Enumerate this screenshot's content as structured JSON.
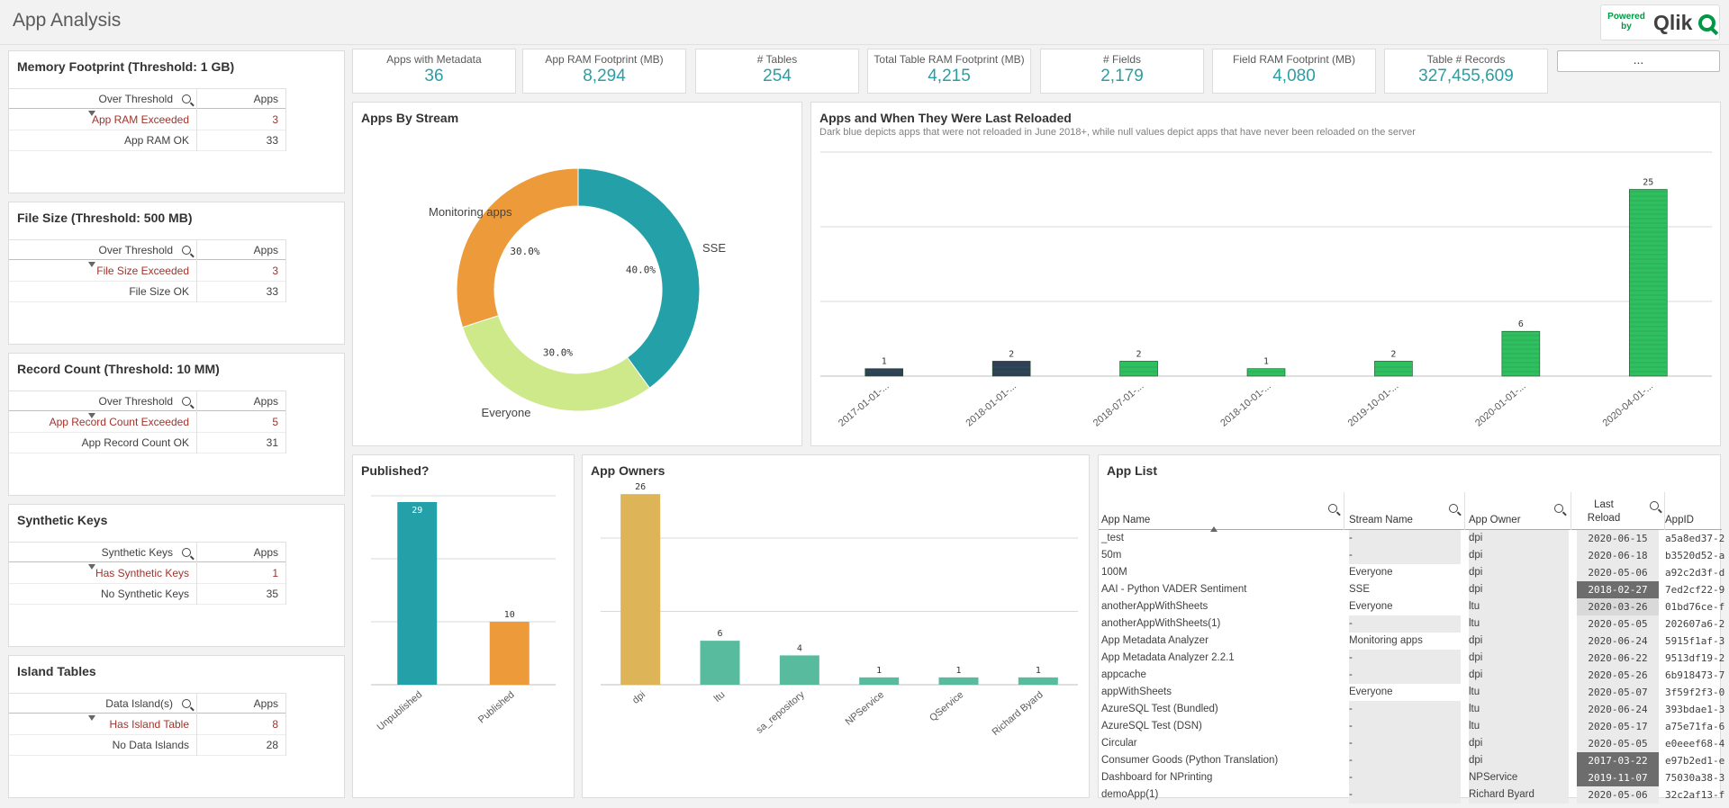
{
  "app": {
    "title": "App Analysis",
    "logo_powered": "Powered by",
    "logo_brand": "Qlik"
  },
  "kpis": [
    {
      "label": "Apps with Metadata",
      "value": "36"
    },
    {
      "label": "App RAM Footprint (MB)",
      "value": "8,294"
    },
    {
      "label": "# Tables",
      "value": "254"
    },
    {
      "label": "Total Table RAM Footprint (MB)",
      "value": "4,215"
    },
    {
      "label": "# Fields",
      "value": "2,179"
    },
    {
      "label": "Field RAM Footprint (MB)",
      "value": "4,080"
    },
    {
      "label": "Table # Records",
      "value": "327,455,609"
    }
  ],
  "more_button": "...",
  "threshold_tables": [
    {
      "title": "Memory Footprint (Threshold: 1 GB)",
      "col1": "Over Threshold",
      "col2": "Apps",
      "rows": [
        {
          "label": "App RAM Exceeded",
          "value": "3",
          "flag": true
        },
        {
          "label": "App RAM OK",
          "value": "33",
          "flag": false
        }
      ]
    },
    {
      "title": "File Size (Threshold: 500 MB)",
      "col1": "Over Threshold",
      "col2": "Apps",
      "rows": [
        {
          "label": "File Size Exceeded",
          "value": "3",
          "flag": true
        },
        {
          "label": "File Size OK",
          "value": "33",
          "flag": false
        }
      ]
    },
    {
      "title": "Record Count (Threshold: 10 MM)",
      "col1": "Over Threshold",
      "col2": "Apps",
      "rows": [
        {
          "label": "App Record Count Exceeded",
          "value": "5",
          "flag": true
        },
        {
          "label": "App Record Count OK",
          "value": "31",
          "flag": false
        }
      ]
    },
    {
      "title": "Synthetic Keys",
      "col1": "Synthetic Keys",
      "col2": "Apps",
      "rows": [
        {
          "label": "Has Synthetic Keys",
          "value": "1",
          "flag": true
        },
        {
          "label": "No Synthetic Keys",
          "value": "35",
          "flag": false
        }
      ]
    },
    {
      "title": "Island Tables",
      "col1": "Data Island(s)",
      "col2": "Apps",
      "rows": [
        {
          "label": "Has Island Table",
          "value": "8",
          "flag": true
        },
        {
          "label": "No Data Islands",
          "value": "28",
          "flag": false
        }
      ]
    }
  ],
  "panels": {
    "stream_title": "Apps By Stream",
    "reload_title": "Apps and When They Were Last Reloaded",
    "reload_subtitle": "Dark blue depicts apps that were not reloaded in June 2018+, while null values depict apps that have never been reloaded on the server",
    "published_title": "Published?",
    "owners_title": "App Owners",
    "applist_title": "App List"
  },
  "chart_data": [
    {
      "type": "pie",
      "title": "Apps By Stream",
      "slices": [
        {
          "label": "SSE",
          "value": 40.0,
          "display": "40.0%",
          "color": "#23a0a8"
        },
        {
          "label": "Everyone",
          "value": 30.0,
          "display": "30.0%",
          "color": "#cde98a"
        },
        {
          "label": "Monitoring apps",
          "value": 30.0,
          "display": "30.0%",
          "color": "#ec9a3a"
        }
      ]
    },
    {
      "type": "bar",
      "title": "Apps and When They Were Last Reloaded",
      "categories": [
        "2017-01-01-...",
        "2018-01-01-...",
        "2018-07-01-...",
        "2018-10-01-...",
        "2019-10-01-...",
        "2020-01-01-...",
        "2020-04-01-..."
      ],
      "values": [
        1,
        2,
        2,
        1,
        2,
        6,
        25
      ],
      "colors": [
        "#2f3f55",
        "#2f3f55",
        "#2fbf5f",
        "#2fbf5f",
        "#2fbf5f",
        "#2fbf5f",
        "#2fbf5f"
      ],
      "ylim": [
        0,
        30
      ]
    },
    {
      "type": "bar",
      "title": "Published?",
      "categories": [
        "Unpublished",
        "Published"
      ],
      "values": [
        29,
        10
      ],
      "colors": [
        "#23a0a8",
        "#ec9a3a"
      ],
      "ylim": [
        0,
        30
      ]
    },
    {
      "type": "bar",
      "title": "App Owners",
      "categories": [
        "dpi",
        "ltu",
        "sa_repository",
        "NPService",
        "QService",
        "Richard Byard"
      ],
      "values": [
        26,
        6,
        4,
        1,
        1,
        1
      ],
      "colors": [
        "#ddb457",
        "#58bb9e",
        "#58bb9e",
        "#58bb9e",
        "#58bb9e",
        "#58bb9e"
      ],
      "ylim": [
        0,
        27
      ]
    }
  ],
  "app_list": {
    "columns": [
      "App Name",
      "Stream Name",
      "App Owner",
      "Last Reload",
      "AppID"
    ],
    "rows": [
      {
        "name": "_test",
        "stream": "-",
        "owner": "dpi",
        "reload": "2020-06-15",
        "id": "a5a8ed37-2",
        "hl": ""
      },
      {
        "name": "50m",
        "stream": "-",
        "owner": "dpi",
        "reload": "2020-06-18",
        "id": "b3520d52-a",
        "hl": ""
      },
      {
        "name": "100M",
        "stream": "Everyone",
        "owner": "dpi",
        "reload": "2020-05-06",
        "id": "a92c2d3f-d",
        "hl": ""
      },
      {
        "name": "AAI - Python VADER Sentiment",
        "stream": "SSE",
        "owner": "dpi",
        "reload": "2018-02-27",
        "id": "7ed2cf22-9",
        "hl": "dark"
      },
      {
        "name": "anotherAppWithSheets",
        "stream": "Everyone",
        "owner": "ltu",
        "reload": "2020-03-26",
        "id": "01bd76ce-f",
        "hl": "light"
      },
      {
        "name": "anotherAppWithSheets(1)",
        "stream": "-",
        "owner": "ltu",
        "reload": "2020-05-05",
        "id": "202607a6-2",
        "hl": ""
      },
      {
        "name": "App Metadata Analyzer",
        "stream": "Monitoring apps",
        "owner": "dpi",
        "reload": "2020-06-24",
        "id": "5915f1af-3",
        "hl": ""
      },
      {
        "name": "App Metadata Analyzer 2.2.1",
        "stream": "-",
        "owner": "dpi",
        "reload": "2020-06-22",
        "id": "9513df19-2",
        "hl": ""
      },
      {
        "name": "appcache",
        "stream": "-",
        "owner": "dpi",
        "reload": "2020-05-26",
        "id": "6b918473-7",
        "hl": ""
      },
      {
        "name": "appWithSheets",
        "stream": "Everyone",
        "owner": "ltu",
        "reload": "2020-05-07",
        "id": "3f59f2f3-0",
        "hl": ""
      },
      {
        "name": "AzureSQL Test (Bundled)",
        "stream": "-",
        "owner": "ltu",
        "reload": "2020-06-24",
        "id": "393bdae1-3",
        "hl": ""
      },
      {
        "name": "AzureSQL Test (DSN)",
        "stream": "-",
        "owner": "ltu",
        "reload": "2020-05-17",
        "id": "a75e71fa-6",
        "hl": ""
      },
      {
        "name": "Circular",
        "stream": "-",
        "owner": "dpi",
        "reload": "2020-05-05",
        "id": "e0eeef68-4",
        "hl": ""
      },
      {
        "name": "Consumer Goods (Python Translation)",
        "stream": "-",
        "owner": "dpi",
        "reload": "2017-03-22",
        "id": "e97b2ed1-e",
        "hl": "dark"
      },
      {
        "name": "Dashboard for NPrinting",
        "stream": "-",
        "owner": "NPService",
        "reload": "2019-11-07",
        "id": "75030a38-3",
        "hl": "dark"
      },
      {
        "name": "demoApp(1)",
        "stream": "-",
        "owner": "Richard Byard",
        "reload": "2020-05-06",
        "id": "32c2af13-f",
        "hl": ""
      }
    ]
  }
}
